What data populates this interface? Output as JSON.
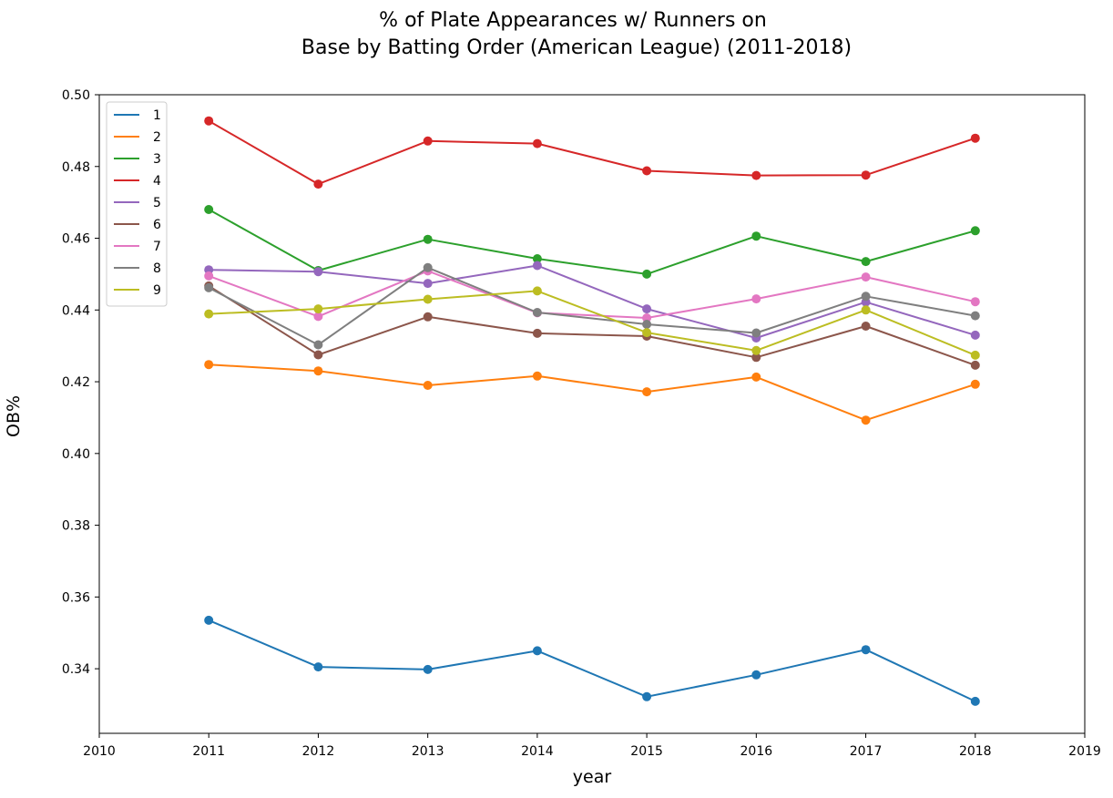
{
  "chart_data": {
    "type": "line",
    "title_lines": [
      "% of Plate Appearances w/ Runners on",
      "Base by Batting Order (American League) (2011-2018)"
    ],
    "xlabel": "year",
    "ylabel": "OB%",
    "xlim": [
      2010,
      2019
    ],
    "ylim": [
      0.322,
      0.5
    ],
    "x_ticks": [
      "2010",
      "2011",
      "2012",
      "2013",
      "2014",
      "2015",
      "2016",
      "2017",
      "2018",
      "2019"
    ],
    "y_ticks": [
      "0.34",
      "0.36",
      "0.38",
      "0.40",
      "0.42",
      "0.44",
      "0.46",
      "0.48",
      "0.50"
    ],
    "grid": false,
    "legend_position": "top-left",
    "x": [
      2011,
      2012,
      2013,
      2014,
      2015,
      2016,
      2017,
      2018
    ],
    "series": [
      {
        "name": "1",
        "color": "#1f77b4",
        "values": [
          0.3535,
          0.3405,
          0.3398,
          0.345,
          0.3322,
          0.3383,
          0.3453,
          0.3309
        ]
      },
      {
        "name": "2",
        "color": "#ff7f0e",
        "values": [
          0.4248,
          0.423,
          0.419,
          0.4216,
          0.4172,
          0.4213,
          0.4093,
          0.4193
        ]
      },
      {
        "name": "3",
        "color": "#2ca02c",
        "values": [
          0.468,
          0.451,
          0.4597,
          0.4543,
          0.45,
          0.4606,
          0.4535,
          0.4621
        ]
      },
      {
        "name": "4",
        "color": "#d62728",
        "values": [
          0.4927,
          0.4751,
          0.4871,
          0.4864,
          0.4788,
          0.4775,
          0.4776,
          0.4879
        ]
      },
      {
        "name": "5",
        "color": "#9467bd",
        "values": [
          0.4512,
          0.4507,
          0.4474,
          0.4524,
          0.4403,
          0.4322,
          0.4422,
          0.433
        ]
      },
      {
        "name": "6",
        "color": "#8c564b",
        "values": [
          0.4467,
          0.4275,
          0.4381,
          0.4335,
          0.4327,
          0.4268,
          0.4355,
          0.4246
        ]
      },
      {
        "name": "7",
        "color": "#e377c2",
        "values": [
          0.4495,
          0.4382,
          0.4509,
          0.4392,
          0.4378,
          0.4431,
          0.4492,
          0.4423
        ]
      },
      {
        "name": "8",
        "color": "#7f7f7f",
        "values": [
          0.4462,
          0.4303,
          0.4518,
          0.4393,
          0.436,
          0.4336,
          0.4438,
          0.4384
        ]
      },
      {
        "name": "9",
        "color": "#bcbd22",
        "values": [
          0.4389,
          0.4403,
          0.443,
          0.4453,
          0.4337,
          0.4287,
          0.44,
          0.4274
        ]
      }
    ]
  }
}
